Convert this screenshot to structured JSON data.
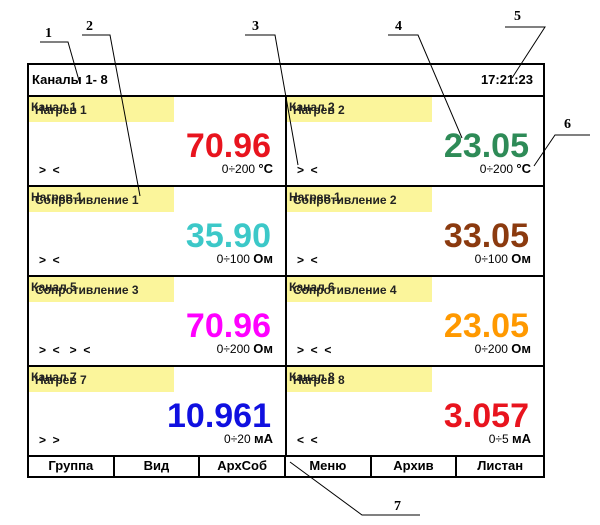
{
  "callouts": [
    "1",
    "2",
    "3",
    "4",
    "5",
    "6",
    "7"
  ],
  "header": {
    "title": "Каналы 1- 8",
    "time": "17:21:23"
  },
  "channels": [
    {
      "labels": [
        "Канал 1",
        "Нагрев 1"
      ],
      "value": "70.96",
      "color": "#e8141e",
      "range": "0÷200",
      "unit": "°C",
      "indicator": ">  <"
    },
    {
      "labels": [
        "Канал 2",
        "Нагрев 2"
      ],
      "value": "23.05",
      "color": "#2e8b57",
      "range": "0÷200",
      "unit": "°C",
      "indicator": ">  <"
    },
    {
      "labels": [
        "Нагрев 1",
        "Сопротивление 1"
      ],
      "value": "35.90",
      "color": "#3cc8c8",
      "range": "0÷100",
      "unit": "Ом",
      "indicator": ">  <"
    },
    {
      "labels": [
        "Нагрев 1",
        "Сопротивление 2"
      ],
      "value": "33.05",
      "color": "#8b3a0f",
      "range": "0÷100",
      "unit": "Ом",
      "indicator": ">  <"
    },
    {
      "labels": [
        "Канал 5",
        "Сопротивление 3"
      ],
      "value": "70.96",
      "color": "#ff00ff",
      "range": "0÷200",
      "unit": "Ом",
      "indicator": ">  <   >  <"
    },
    {
      "labels": [
        "Канал 6",
        "Сопротивление 4"
      ],
      "value": "23.05",
      "color": "#ff9900",
      "range": "0÷200",
      "unit": "Ом",
      "indicator": ">  <  <"
    },
    {
      "labels": [
        "Канал 7",
        "Нагрев 7"
      ],
      "value": "10.961",
      "color": "#1010e0",
      "range": "0÷20",
      "unit": "мА",
      "indicator": ">  >"
    },
    {
      "labels": [
        "Канал 8",
        "Нагрев 8"
      ],
      "value": "3.057",
      "color": "#e8141e",
      "range": "0÷5",
      "unit": "мА",
      "indicator": "<  <"
    }
  ],
  "buttons": [
    "Группа",
    "Вид",
    "АрхСоб",
    "Меню",
    "Архив",
    "Листан"
  ]
}
